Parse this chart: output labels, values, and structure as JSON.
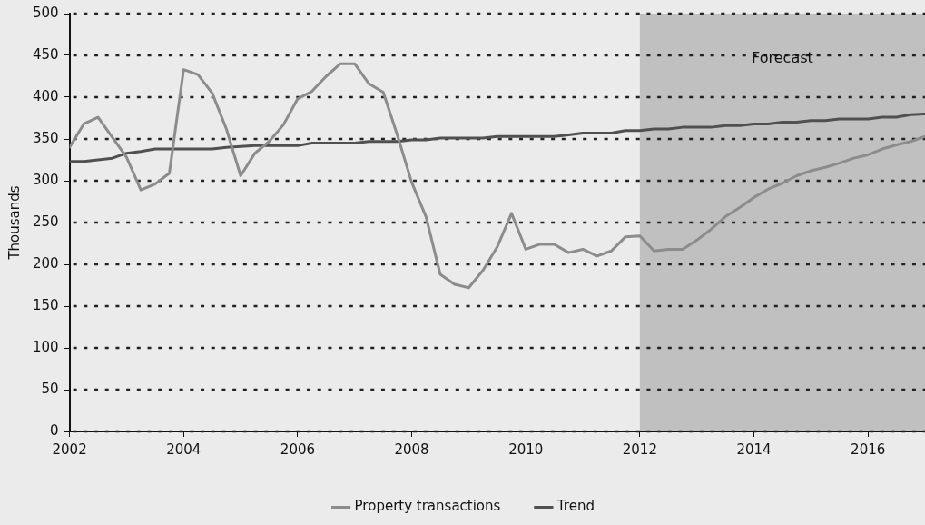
{
  "chart_data": {
    "type": "line",
    "ylabel": "Thousands",
    "xlim": [
      2002,
      2017
    ],
    "xticks": [
      2002,
      2004,
      2006,
      2008,
      2010,
      2012,
      2014,
      2016
    ],
    "ylim": [
      0,
      500
    ],
    "yticks": [
      0,
      50,
      100,
      150,
      200,
      250,
      300,
      350,
      400,
      450,
      500
    ],
    "grid": "y",
    "line_style": "solid",
    "legend": "bottom",
    "marker": "none",
    "x": [
      2002,
      2002.25,
      2002.5,
      2002.75,
      2003,
      2003.25,
      2003.5,
      2003.75,
      2004,
      2004.25,
      2004.5,
      2004.75,
      2005,
      2005.25,
      2005.5,
      2005.75,
      2006,
      2006.25,
      2006.5,
      2006.75,
      2007,
      2007.25,
      2007.5,
      2007.75,
      2008,
      2008.25,
      2008.5,
      2008.75,
      2009,
      2009.25,
      2009.5,
      2009.75,
      2010,
      2010.25,
      2010.5,
      2010.75,
      2011,
      2011.25,
      2011.5,
      2011.75,
      2012,
      2012.25,
      2012.5,
      2012.75,
      2013,
      2013.25,
      2013.5,
      2013.75,
      2014,
      2014.25,
      2014.5,
      2014.75,
      2015,
      2015.25,
      2015.5,
      2015.75,
      2016,
      2016.25,
      2016.5,
      2016.75,
      2017
    ],
    "series": [
      {
        "name": "Property transactions",
        "color": "#8c8c8c",
        "values": [
          340,
          368,
          376,
          352,
          328,
          289,
          296,
          309,
          433,
          427,
          405,
          362,
          306,
          333,
          347,
          367,
          398,
          407,
          425,
          440,
          440,
          416,
          406,
          354,
          298,
          257,
          188,
          176,
          172,
          193,
          221,
          261,
          218,
          224,
          224,
          214,
          218,
          210,
          216,
          233,
          234,
          216,
          218,
          218,
          229,
          242,
          257,
          268,
          280,
          290,
          297,
          306,
          312,
          316,
          321,
          327,
          331,
          338,
          343,
          347,
          353
        ]
      },
      {
        "name": "Trend",
        "color": "#505050",
        "values": [
          323,
          323,
          325,
          327,
          333,
          335,
          338,
          338,
          338,
          338,
          338,
          340,
          341,
          342,
          342,
          342,
          342,
          345,
          345,
          345,
          345,
          347,
          347,
          347,
          349,
          349,
          351,
          351,
          351,
          351,
          353,
          353,
          353,
          353,
          353,
          355,
          357,
          357,
          357,
          360,
          360,
          362,
          362,
          364,
          364,
          364,
          366,
          366,
          368,
          368,
          370,
          370,
          372,
          372,
          374,
          374,
          374,
          376,
          376,
          379,
          380
        ]
      }
    ],
    "bands": [
      {
        "axis": "x",
        "from": 2012,
        "to": 2017,
        "label": "Forecast",
        "color": "#c0c0c0"
      }
    ]
  }
}
